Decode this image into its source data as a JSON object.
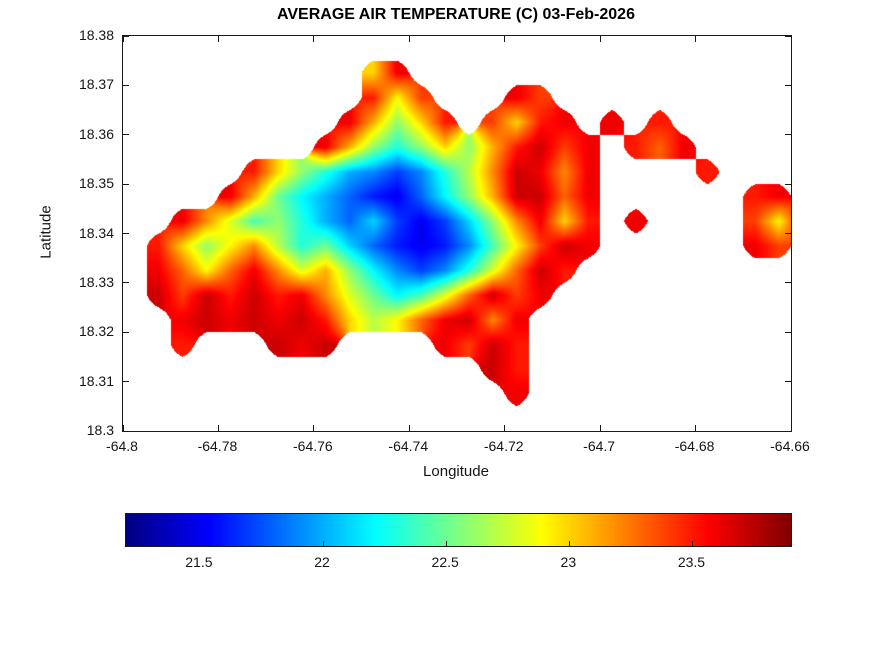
{
  "figure": {
    "title": "AVERAGE AIR TEMPERATURE (C) 03-Feb-2026"
  },
  "chart_data": {
    "type": "heatmap",
    "title": "AVERAGE AIR TEMPERATURE (C) 03-Feb-2026",
    "xlabel": "Longitude",
    "ylabel": "Latitude",
    "xlim": [
      -64.8,
      -64.66
    ],
    "ylim": [
      18.3,
      18.38
    ],
    "grid_lines": false,
    "colormap": "jet",
    "x_ticks": [
      {
        "value": -64.8,
        "label": "-64.8"
      },
      {
        "value": -64.78,
        "label": "-64.78"
      },
      {
        "value": -64.76,
        "label": "-64.76"
      },
      {
        "value": -64.74,
        "label": "-64.74"
      },
      {
        "value": -64.72,
        "label": "-64.72"
      },
      {
        "value": -64.7,
        "label": "-64.7"
      },
      {
        "value": -64.68,
        "label": "-64.68"
      },
      {
        "value": -64.66,
        "label": "-64.66"
      }
    ],
    "y_ticks": [
      {
        "value": 18.3,
        "label": "18.3"
      },
      {
        "value": 18.31,
        "label": "18.31"
      },
      {
        "value": 18.32,
        "label": "18.32"
      },
      {
        "value": 18.33,
        "label": "18.33"
      },
      {
        "value": 18.34,
        "label": "18.34"
      },
      {
        "value": 18.35,
        "label": "18.35"
      },
      {
        "value": 18.36,
        "label": "18.36"
      },
      {
        "value": 18.37,
        "label": "18.37"
      },
      {
        "value": 18.38,
        "label": "18.38"
      }
    ],
    "colorbar": {
      "orientation": "horizontal",
      "vmin": 21.2,
      "vmax": 23.9,
      "ticks": [
        {
          "value": 21.5,
          "label": "21.5"
        },
        {
          "value": 22,
          "label": "22"
        },
        {
          "value": 22.5,
          "label": "22.5"
        },
        {
          "value": 23,
          "label": "23"
        },
        {
          "value": 23.5,
          "label": "23.5"
        }
      ]
    },
    "grid": {
      "description": "Average air temperature (deg C) over the island; rows are latitudes (north to south), columns are longitudes (west to east); null = sea (no data)",
      "lon_start": -64.7975,
      "lon_step": 0.005,
      "lat_start": 18.3725,
      "lat_step": -0.005,
      "values": [
        [
          null,
          null,
          null,
          null,
          null,
          null,
          null,
          null,
          null,
          null,
          23.0,
          23.6,
          null,
          null,
          null,
          null,
          null,
          null,
          null,
          null,
          null,
          null,
          null,
          null,
          null,
          null,
          null,
          null,
          null
        ],
        [
          null,
          null,
          null,
          null,
          null,
          null,
          null,
          null,
          null,
          null,
          23.5,
          22.9,
          23.4,
          null,
          null,
          null,
          23.6,
          23.4,
          null,
          null,
          null,
          null,
          null,
          null,
          null,
          null,
          null,
          null,
          null
        ],
        [
          null,
          null,
          null,
          null,
          null,
          null,
          null,
          null,
          null,
          23.6,
          23.1,
          22.6,
          23.0,
          23.5,
          null,
          23.4,
          23.0,
          23.5,
          23.6,
          null,
          23.6,
          null,
          23.5,
          null,
          null,
          null,
          null,
          null,
          null
        ],
        [
          null,
          null,
          null,
          null,
          null,
          null,
          null,
          null,
          23.6,
          23.1,
          22.6,
          22.3,
          22.6,
          23.0,
          22.6,
          23.1,
          23.5,
          23.7,
          23.4,
          23.6,
          null,
          23.5,
          23.3,
          23.6,
          null,
          null,
          null,
          null,
          null
        ],
        [
          null,
          null,
          null,
          null,
          null,
          23.5,
          23.0,
          22.6,
          22.3,
          22.0,
          21.9,
          21.7,
          21.9,
          22.3,
          22.7,
          23.2,
          23.7,
          23.6,
          23.2,
          23.6,
          null,
          null,
          null,
          null,
          23.5,
          null,
          null,
          null,
          null
        ],
        [
          null,
          null,
          null,
          null,
          23.6,
          23.1,
          22.5,
          22.2,
          22.0,
          21.8,
          21.6,
          21.5,
          21.8,
          22.2,
          22.6,
          23.1,
          23.7,
          23.7,
          23.3,
          23.6,
          null,
          null,
          null,
          null,
          null,
          null,
          23.5,
          23.6,
          null
        ],
        [
          null,
          null,
          23.6,
          23.2,
          22.8,
          22.4,
          22.6,
          22.3,
          22.0,
          21.8,
          22.1,
          21.7,
          21.5,
          21.7,
          22.1,
          22.6,
          23.2,
          23.6,
          23.0,
          23.5,
          null,
          23.6,
          null,
          null,
          null,
          null,
          23.4,
          22.9,
          23.6
        ],
        [
          null,
          23.5,
          23.0,
          22.6,
          22.9,
          23.2,
          22.7,
          22.3,
          22.5,
          22.1,
          21.8,
          21.6,
          21.5,
          21.6,
          21.9,
          22.4,
          22.9,
          23.4,
          23.7,
          23.6,
          null,
          null,
          null,
          null,
          null,
          null,
          23.6,
          23.4,
          null
        ],
        [
          null,
          23.6,
          23.3,
          22.9,
          23.3,
          23.6,
          23.2,
          22.8,
          23.1,
          22.6,
          22.2,
          21.9,
          21.7,
          21.9,
          22.3,
          22.8,
          23.3,
          23.7,
          23.5,
          null,
          null,
          null,
          null,
          null,
          null,
          null,
          null,
          null,
          null
        ],
        [
          null,
          23.7,
          23.4,
          23.7,
          23.5,
          23.7,
          23.5,
          23.6,
          23.2,
          22.8,
          22.5,
          22.2,
          22.4,
          22.8,
          23.3,
          23.7,
          23.4,
          23.6,
          null,
          null,
          null,
          null,
          null,
          null,
          null,
          null,
          null,
          null,
          null
        ],
        [
          null,
          null,
          23.6,
          23.7,
          23.6,
          23.7,
          23.6,
          23.7,
          23.5,
          23.0,
          22.7,
          22.9,
          23.3,
          23.6,
          23.7,
          23.2,
          23.6,
          null,
          null,
          null,
          null,
          null,
          null,
          null,
          null,
          null,
          null,
          null,
          null
        ],
        [
          null,
          null,
          23.5,
          null,
          null,
          null,
          23.7,
          23.6,
          23.7,
          null,
          null,
          null,
          null,
          23.6,
          23.4,
          23.7,
          23.5,
          null,
          null,
          null,
          null,
          null,
          null,
          null,
          null,
          null,
          null,
          null,
          null
        ],
        [
          null,
          null,
          null,
          null,
          null,
          null,
          null,
          null,
          null,
          null,
          null,
          null,
          null,
          null,
          null,
          23.7,
          23.5,
          null,
          null,
          null,
          null,
          null,
          null,
          null,
          null,
          null,
          null,
          null,
          null
        ],
        [
          null,
          null,
          null,
          null,
          null,
          null,
          null,
          null,
          null,
          null,
          null,
          null,
          null,
          null,
          null,
          null,
          23.6,
          null,
          null,
          null,
          null,
          null,
          null,
          null,
          null,
          null,
          null,
          null,
          null
        ]
      ]
    }
  }
}
